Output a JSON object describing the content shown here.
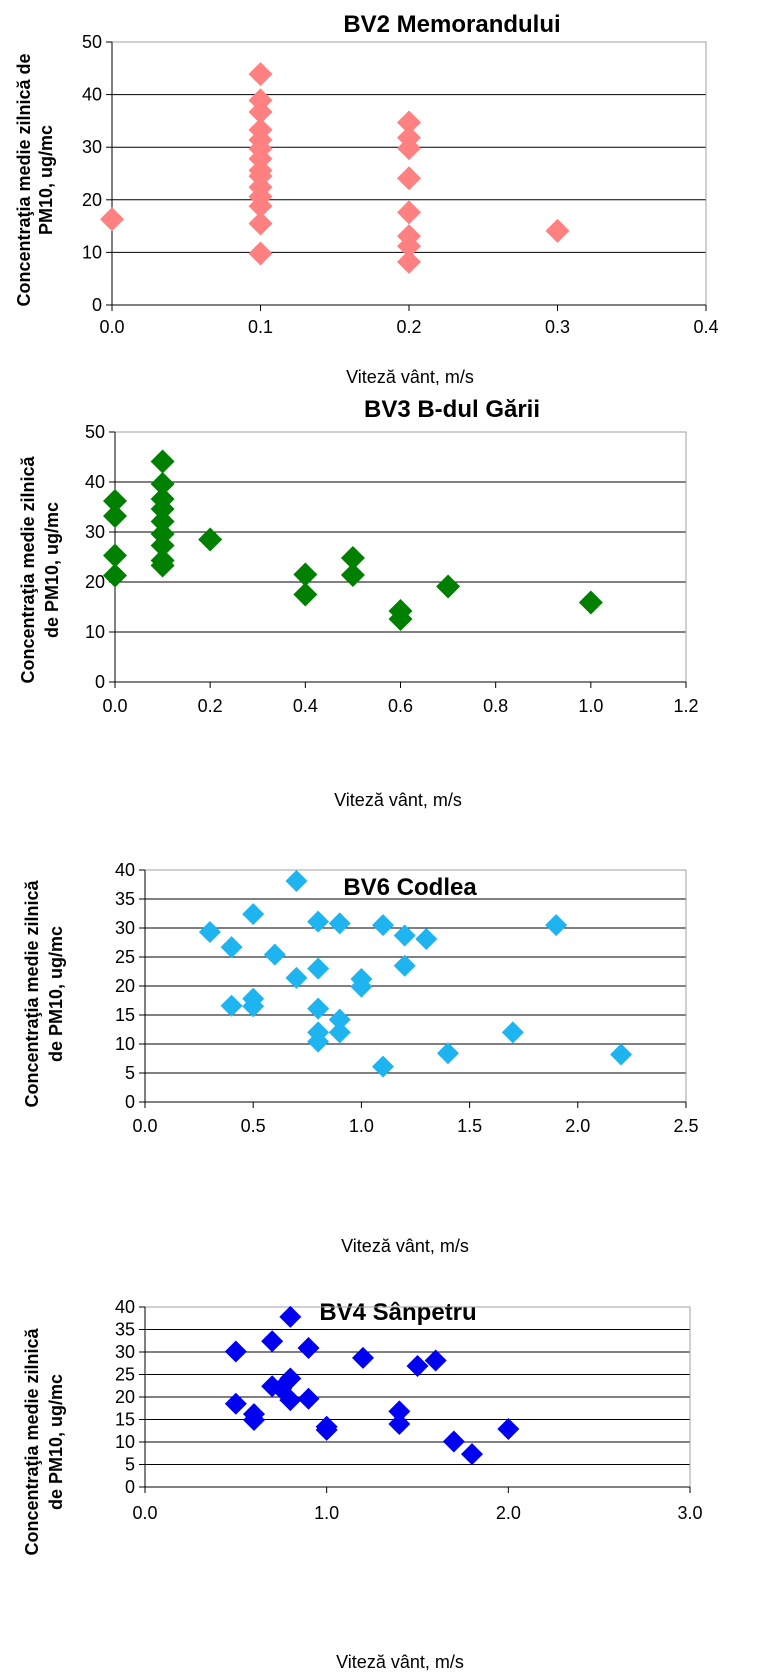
{
  "chart_data": [
    {
      "type": "scatter",
      "title": "BV2 Memorandului",
      "xlabel": "Viteză vânt, m/s",
      "ylabel_lines": [
        "Concentraţia medie zilnică de",
        "PM10, ug/mc"
      ],
      "xlim": [
        0,
        0.4
      ],
      "ylim": [
        0,
        50
      ],
      "x_ticks": [
        "0.0",
        "0.1",
        "0.2",
        "0.3",
        "0.4"
      ],
      "y_ticks": [
        "0",
        "10",
        "20",
        "30",
        "40",
        "50"
      ],
      "grid": true,
      "color": "#ff8080",
      "points": [
        {
          "x": 0.0,
          "y": 16.3
        },
        {
          "x": 0.1,
          "y": 43.9
        },
        {
          "x": 0.1,
          "y": 38.9
        },
        {
          "x": 0.1,
          "y": 36.7
        },
        {
          "x": 0.1,
          "y": 33.3
        },
        {
          "x": 0.1,
          "y": 31.4
        },
        {
          "x": 0.1,
          "y": 29.7
        },
        {
          "x": 0.1,
          "y": 27.8
        },
        {
          "x": 0.1,
          "y": 25.6
        },
        {
          "x": 0.1,
          "y": 24.5
        },
        {
          "x": 0.1,
          "y": 22.4
        },
        {
          "x": 0.1,
          "y": 20.6
        },
        {
          "x": 0.1,
          "y": 18.8
        },
        {
          "x": 0.1,
          "y": 15.5
        },
        {
          "x": 0.1,
          "y": 9.8
        },
        {
          "x": 0.2,
          "y": 34.7
        },
        {
          "x": 0.2,
          "y": 31.8
        },
        {
          "x": 0.2,
          "y": 29.8
        },
        {
          "x": 0.2,
          "y": 24.1
        },
        {
          "x": 0.2,
          "y": 17.6
        },
        {
          "x": 0.2,
          "y": 13.1
        },
        {
          "x": 0.2,
          "y": 11.2
        },
        {
          "x": 0.2,
          "y": 8.2
        },
        {
          "x": 0.3,
          "y": 14.1
        }
      ]
    },
    {
      "type": "scatter",
      "title": "BV3 B-dul Gării",
      "xlabel": "Viteză vânt, m/s",
      "ylabel_lines": [
        "Concentraţia medie zilnică",
        "de PM10, ug/mc"
      ],
      "xlim": [
        0,
        1.2
      ],
      "ylim": [
        0,
        50
      ],
      "x_ticks": [
        "0.0",
        "0.2",
        "0.4",
        "0.6",
        "0.8",
        "1.0",
        "1.2"
      ],
      "y_ticks": [
        "0",
        "10",
        "20",
        "30",
        "40",
        "50"
      ],
      "grid": true,
      "color": "#008000",
      "points": [
        {
          "x": 0.0,
          "y": 36.2
        },
        {
          "x": 0.0,
          "y": 33.2
        },
        {
          "x": 0.0,
          "y": 25.3
        },
        {
          "x": 0.0,
          "y": 21.3
        },
        {
          "x": 0.1,
          "y": 44.1
        },
        {
          "x": 0.1,
          "y": 39.6
        },
        {
          "x": 0.1,
          "y": 36.6
        },
        {
          "x": 0.1,
          "y": 34.6
        },
        {
          "x": 0.1,
          "y": 32.1
        },
        {
          "x": 0.1,
          "y": 29.6
        },
        {
          "x": 0.1,
          "y": 27.3
        },
        {
          "x": 0.1,
          "y": 24.3
        },
        {
          "x": 0.1,
          "y": 23.3
        },
        {
          "x": 0.2,
          "y": 28.5
        },
        {
          "x": 0.4,
          "y": 21.5
        },
        {
          "x": 0.4,
          "y": 17.5
        },
        {
          "x": 0.5,
          "y": 24.8
        },
        {
          "x": 0.5,
          "y": 21.4
        },
        {
          "x": 0.6,
          "y": 14.2
        },
        {
          "x": 0.6,
          "y": 12.6
        },
        {
          "x": 0.7,
          "y": 19.1
        },
        {
          "x": 1.0,
          "y": 15.9
        }
      ]
    },
    {
      "type": "scatter",
      "title": "BV6 Codlea",
      "xlabel": "Viteză vânt, m/s",
      "ylabel_lines": [
        "Concentraţia medie zilnică",
        "de PM10, ug/mc"
      ],
      "xlim": [
        0,
        2.5
      ],
      "ylim": [
        0,
        40
      ],
      "x_ticks": [
        "0.0",
        "0.5",
        "1.0",
        "1.5",
        "2.0",
        "2.5"
      ],
      "y_ticks": [
        "0",
        "5",
        "10",
        "15",
        "20",
        "25",
        "30",
        "35",
        "40"
      ],
      "grid": true,
      "color": "#1eb4f0",
      "points": [
        {
          "x": 0.3,
          "y": 29.3
        },
        {
          "x": 0.4,
          "y": 26.7
        },
        {
          "x": 0.4,
          "y": 16.6
        },
        {
          "x": 0.5,
          "y": 32.4
        },
        {
          "x": 0.5,
          "y": 17.8
        },
        {
          "x": 0.5,
          "y": 16.5
        },
        {
          "x": 0.6,
          "y": 25.4
        },
        {
          "x": 0.7,
          "y": 38.1
        },
        {
          "x": 0.7,
          "y": 21.4
        },
        {
          "x": 0.8,
          "y": 31.1
        },
        {
          "x": 0.8,
          "y": 23.0
        },
        {
          "x": 0.8,
          "y": 16.1
        },
        {
          "x": 0.8,
          "y": 12.0
        },
        {
          "x": 0.8,
          "y": 10.4
        },
        {
          "x": 0.9,
          "y": 30.8
        },
        {
          "x": 0.9,
          "y": 14.2
        },
        {
          "x": 0.9,
          "y": 12.0
        },
        {
          "x": 1.0,
          "y": 21.2
        },
        {
          "x": 1.0,
          "y": 19.9
        },
        {
          "x": 1.1,
          "y": 30.5
        },
        {
          "x": 1.1,
          "y": 6.1
        },
        {
          "x": 1.2,
          "y": 28.7
        },
        {
          "x": 1.2,
          "y": 23.5
        },
        {
          "x": 1.3,
          "y": 28.1
        },
        {
          "x": 1.4,
          "y": 8.4
        },
        {
          "x": 1.7,
          "y": 12.0
        },
        {
          "x": 1.9,
          "y": 30.5
        },
        {
          "x": 2.2,
          "y": 8.2
        }
      ]
    },
    {
      "type": "scatter",
      "title": "BV4 Sânpetru",
      "xlabel": "Viteză vânt, m/s",
      "ylabel_lines": [
        "Concentraţia medie zilnică",
        "de PM10, ug/mc"
      ],
      "xlim": [
        0,
        3
      ],
      "ylim": [
        0,
        40
      ],
      "x_ticks": [
        "0.0",
        "1.0",
        "2.0",
        "3.0"
      ],
      "y_ticks": [
        "0",
        "5",
        "10",
        "15",
        "20",
        "25",
        "30",
        "35",
        "40"
      ],
      "grid": true,
      "color": "#0000f0",
      "points": [
        {
          "x": 0.5,
          "y": 30.1
        },
        {
          "x": 0.5,
          "y": 18.5
        },
        {
          "x": 0.6,
          "y": 16.2
        },
        {
          "x": 0.6,
          "y": 14.9
        },
        {
          "x": 0.7,
          "y": 32.4
        },
        {
          "x": 0.7,
          "y": 22.4
        },
        {
          "x": 0.75,
          "y": 21.9
        },
        {
          "x": 0.8,
          "y": 37.8
        },
        {
          "x": 0.8,
          "y": 24.1
        },
        {
          "x": 0.8,
          "y": 19.3
        },
        {
          "x": 0.9,
          "y": 30.9
        },
        {
          "x": 0.9,
          "y": 19.6
        },
        {
          "x": 1.0,
          "y": 13.4
        },
        {
          "x": 1.0,
          "y": 12.7
        },
        {
          "x": 1.2,
          "y": 28.7
        },
        {
          "x": 1.4,
          "y": 16.8
        },
        {
          "x": 1.4,
          "y": 14.0
        },
        {
          "x": 1.5,
          "y": 26.9
        },
        {
          "x": 1.6,
          "y": 28.1
        },
        {
          "x": 1.7,
          "y": 10.1
        },
        {
          "x": 1.8,
          "y": 7.3
        },
        {
          "x": 2.0,
          "y": 12.9
        }
      ]
    }
  ]
}
